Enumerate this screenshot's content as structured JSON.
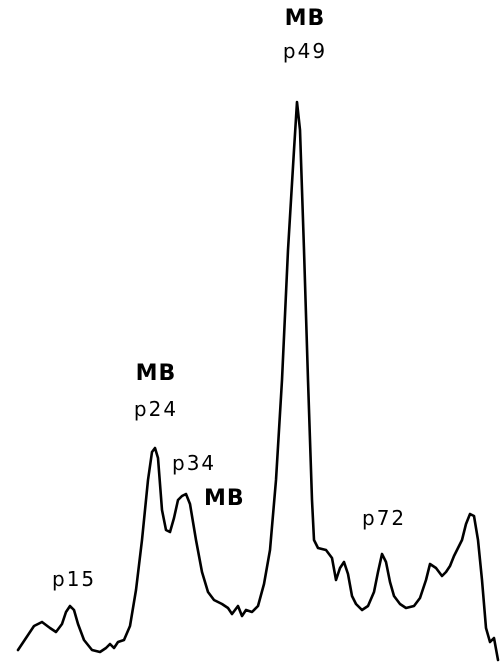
{
  "chart_data": {
    "type": "line",
    "title": "",
    "xlabel": "",
    "ylabel": "",
    "grid": false,
    "legend": "none",
    "line_color": "#000000",
    "annotations": [
      {
        "id": "p15",
        "lines": [
          "p15"
        ],
        "emphasis": [
          false
        ]
      },
      {
        "id": "p24",
        "lines": [
          "MB",
          "p24"
        ],
        "emphasis": [
          true,
          false
        ]
      },
      {
        "id": "p34",
        "lines": [
          "p34",
          "MB"
        ],
        "emphasis": [
          false,
          true
        ]
      },
      {
        "id": "p49",
        "lines": [
          "MB",
          "p49"
        ],
        "emphasis": [
          true,
          false
        ]
      },
      {
        "id": "p72",
        "lines": [
          "p72"
        ],
        "emphasis": [
          false
        ]
      }
    ]
  }
}
